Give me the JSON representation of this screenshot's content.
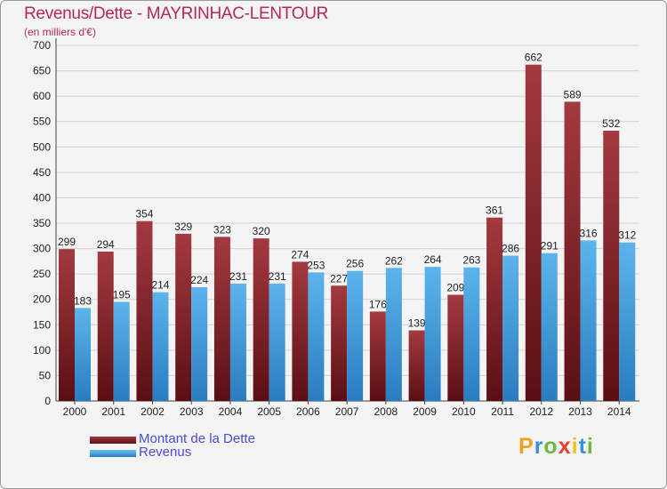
{
  "chart_data": {
    "type": "bar",
    "title": "Revenus/Dette - MAYRINHAC-LENTOUR",
    "subtitle": "(en milliers d'€)",
    "categories": [
      "2000",
      "2001",
      "2002",
      "2003",
      "2004",
      "2005",
      "2006",
      "2007",
      "2008",
      "2009",
      "2010",
      "2011",
      "2012",
      "2013",
      "2014"
    ],
    "series": [
      {
        "name": "Montant de la Dette",
        "color": "#7a1f24",
        "values": [
          299,
          294,
          354,
          329,
          323,
          320,
          274,
          227,
          176,
          139,
          209,
          361,
          662,
          589,
          532
        ]
      },
      {
        "name": "Revenus",
        "color": "#3a9ad9",
        "values": [
          183,
          195,
          214,
          224,
          231,
          231,
          253,
          256,
          262,
          264,
          263,
          286,
          291,
          316,
          312
        ]
      }
    ],
    "ylim": [
      0,
      700
    ],
    "yticks": [
      0,
      50,
      100,
      150,
      200,
      250,
      300,
      350,
      400,
      450,
      500,
      550,
      600,
      650,
      700
    ],
    "grid": true,
    "legend_position": "bottom-left"
  },
  "brand": {
    "letters": [
      "P",
      "r",
      "o",
      "x",
      "i",
      "t",
      "i"
    ],
    "colors": [
      "#f0a020",
      "#3a8fd8",
      "#6ab842",
      "#e8402a",
      "#f0c020",
      "#3a8fd8",
      "#6ab842"
    ]
  }
}
